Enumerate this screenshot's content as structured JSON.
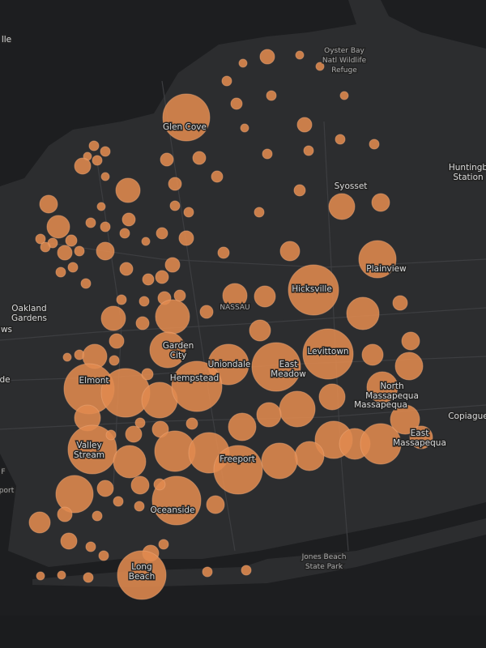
{
  "labels": [
    {
      "lines": [
        "lle"
      ]
    },
    {
      "lines": [
        "Oyster Bay",
        "Natl Wildlife",
        "Refuge"
      ]
    },
    {
      "lines": [
        "Glen Cove"
      ]
    },
    {
      "lines": [
        "Huntingb",
        "Station"
      ]
    },
    {
      "lines": [
        "Syosset"
      ]
    },
    {
      "lines": [
        "Plainview"
      ]
    },
    {
      "lines": [
        "Hicksville"
      ]
    },
    {
      "lines": [
        "NASSAU"
      ]
    },
    {
      "lines": [
        "Oakland",
        "Gardens"
      ]
    },
    {
      "lines": [
        "ws"
      ]
    },
    {
      "lines": [
        "Garden",
        "City"
      ]
    },
    {
      "lines": [
        "Uniondale"
      ]
    },
    {
      "lines": [
        "East",
        "Meadow"
      ]
    },
    {
      "lines": [
        "Levittown"
      ]
    },
    {
      "lines": [
        "de"
      ]
    },
    {
      "lines": [
        "North",
        "Massapequa"
      ]
    },
    {
      "lines": [
        "Massapequa"
      ]
    },
    {
      "lines": [
        "Copiague"
      ]
    },
    {
      "lines": [
        "Elmont"
      ]
    },
    {
      "lines": [
        "Hempstead"
      ]
    },
    {
      "lines": [
        "East",
        "Massapequa"
      ]
    },
    {
      "lines": [
        "Valley",
        "Stream"
      ]
    },
    {
      "lines": [
        "Freeport"
      ]
    },
    {
      "lines": [
        "F"
      ]
    },
    {
      "lines": [
        "port"
      ]
    },
    {
      "lines": [
        "Oceanside"
      ]
    },
    {
      "lines": [
        "Jones Beach",
        "State Park"
      ]
    },
    {
      "lines": [
        "Long",
        "Beach"
      ]
    }
  ],
  "bubbles": {
    "values": [
      9,
      5,
      5,
      5,
      6,
      6,
      7,
      5,
      29,
      9,
      5,
      6,
      6,
      6,
      6,
      6,
      6,
      5,
      10,
      6,
      5,
      8,
      8,
      7,
      15,
      8,
      7,
      16,
      11,
      11,
      5,
      6,
      6,
      6,
      14,
      8,
      6,
      6,
      6,
      7,
      9,
      6,
      6,
      7,
      6,
      9,
      6,
      11,
      5,
      7,
      12,
      23,
      6,
      6,
      8,
      9,
      7,
      8,
      6,
      31,
      15,
      13,
      6,
      6,
      7,
      8,
      8,
      20,
      9,
      15,
      21,
      8,
      13,
      9,
      22,
      31,
      13,
      11,
      25,
      30,
      5,
      6,
      15,
      6,
      17,
      31,
      30,
      7,
      22,
      31,
      16,
      19,
      22,
      15,
      16,
      17,
      7,
      10,
      6,
      18,
      14,
      10,
      30,
      25,
      25,
      6,
      23,
      19,
      25,
      18,
      22,
      30,
      20,
      10,
      11,
      23,
      30,
      11,
      7,
      6,
      6,
      9,
      13,
      6,
      10,
      6,
      6,
      6,
      10,
      30,
      6,
      6,
      5,
      5,
      6
    ]
  }
}
